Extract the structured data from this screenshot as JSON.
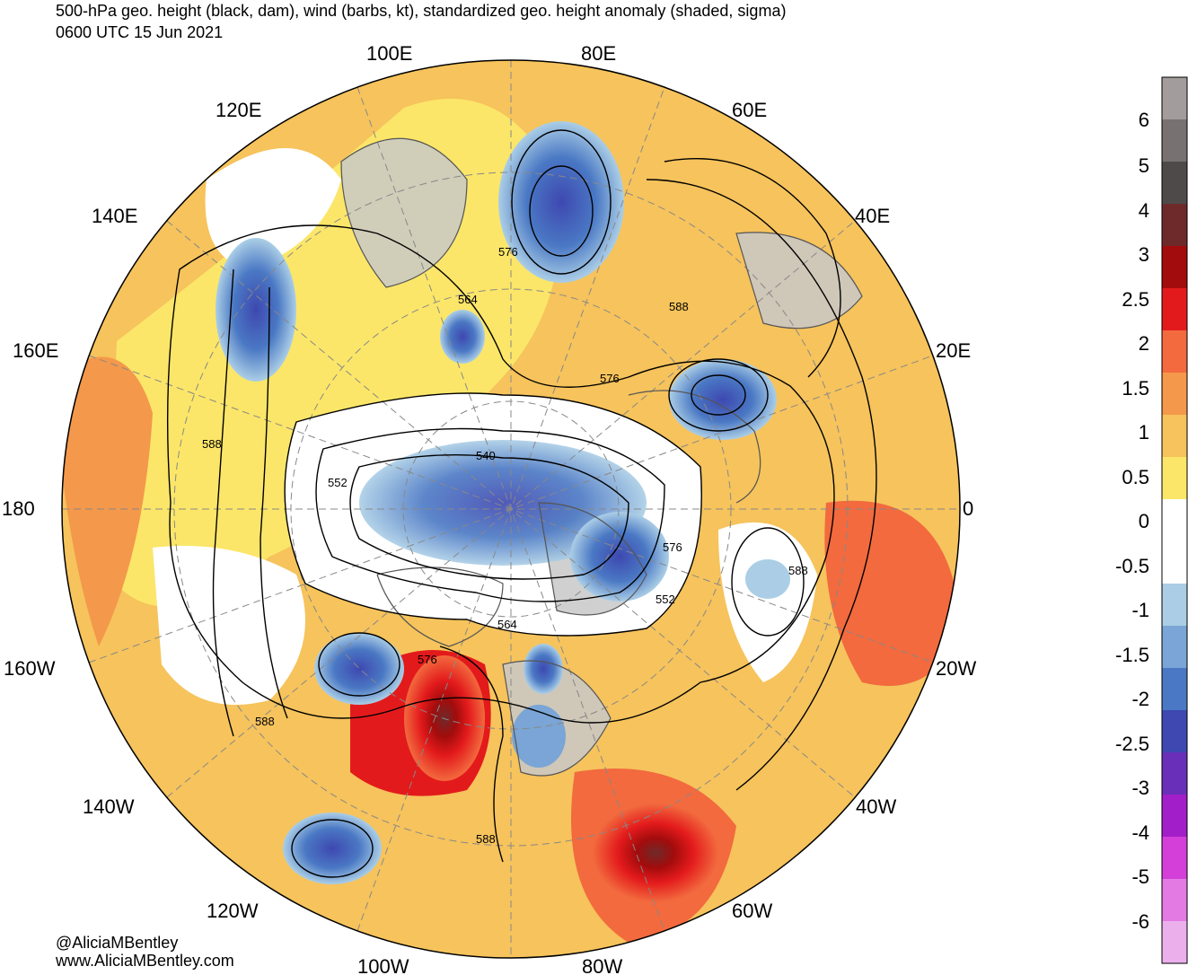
{
  "header": {
    "title": "500-hPa geo. height (black, dam), wind (barbs, kt), standardized geo. height anomaly (shaded, sigma)",
    "valid_time": "0600 UTC 15 Jun 2021"
  },
  "credits": {
    "handle": "@AliciaMBentley",
    "website": "www.AliciaMBentley.com"
  },
  "map": {
    "projection": "north-polar-stereographic",
    "longitude_labels": [
      "100E",
      "80E",
      "120E",
      "60E",
      "140E",
      "40E",
      "160E",
      "20E",
      "180",
      "0",
      "160W",
      "20W",
      "140W",
      "40W",
      "120W",
      "60W",
      "100W",
      "80W"
    ],
    "contour_labels": [
      "576",
      "564",
      "588",
      "576",
      "588",
      "552",
      "540",
      "576",
      "588",
      "552",
      "564",
      "576",
      "588",
      "588"
    ],
    "colors": {
      "ocean_neutral": "#ffffff",
      "land_neutral": "#c8c8c8",
      "coast": "#555555",
      "contour": "#000000"
    }
  },
  "colorbar": {
    "labels": [
      "6",
      "5",
      "4",
      "3",
      "2.5",
      "2",
      "1.5",
      "1",
      "0.5",
      "0",
      "-0.5",
      "-1",
      "-1.5",
      "-2",
      "-2.5",
      "-3",
      "-4",
      "-5",
      "-6"
    ],
    "colors": [
      "#a39c9c",
      "#777171",
      "#4f4a4a",
      "#6e2a2a",
      "#a30c0c",
      "#e31a1c",
      "#f26a3e",
      "#f4984b",
      "#f6c35c",
      "#fbe669",
      "#ffffff",
      "#ffffff",
      "#abcee6",
      "#7aa5d6",
      "#4a78c4",
      "#3e48b0",
      "#6a2fb8",
      "#a21ec8",
      "#d43fd9",
      "#e37ae4",
      "#ebb0ec"
    ]
  }
}
